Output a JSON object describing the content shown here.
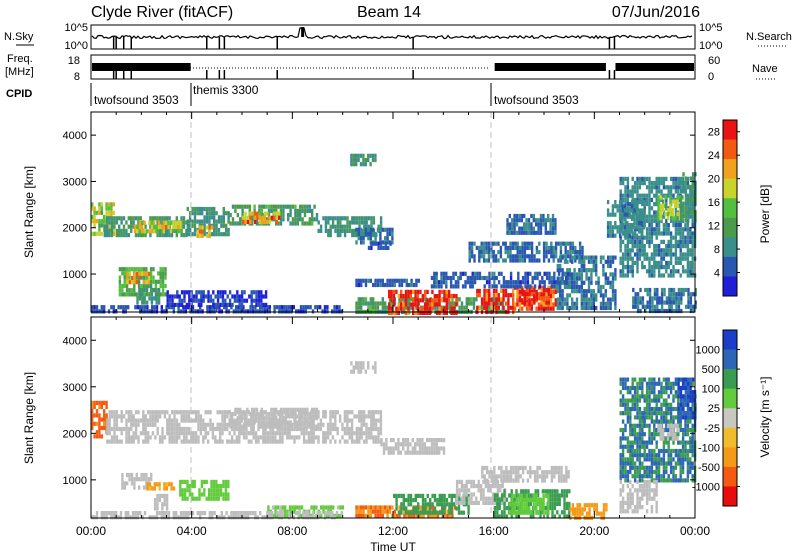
{
  "header": {
    "site_title": "Clyde River (fitACF)",
    "beam": "Beam 14",
    "date": "07/Jun/2016"
  },
  "status_panels": {
    "nsky": {
      "label": "N.Sky",
      "ticks": [
        "10^5",
        "10^0"
      ]
    },
    "nsearch": {
      "label": "N.Search",
      "ticks": [
        "10^5",
        "10^0"
      ]
    },
    "freq": {
      "label_line1": "Freq.",
      "label_line2": "[MHz]",
      "ticks": [
        "18",
        "8"
      ]
    },
    "nave": {
      "label": "Nave",
      "ticks": [
        "60",
        "0"
      ]
    },
    "cpid": {
      "label": "CPID",
      "segments": [
        {
          "name": "twofsound 3503",
          "start_hour": 0.0,
          "end_hour": 4.0
        },
        {
          "name": "themis 3300",
          "start_hour": 4.0,
          "end_hour": 16.0
        },
        {
          "name": "twofsound 3503",
          "start_hour": 16.0,
          "end_hour": 24.0
        }
      ]
    }
  },
  "colors": {
    "power_scale": [
      "#1f1fd8",
      "#2a57b0",
      "#3a8f8a",
      "#4c9a4c",
      "#52c03e",
      "#c8d42c",
      "#f0a21e",
      "#f25a14",
      "#e81414"
    ],
    "velocity_scale": [
      "#e80c0c",
      "#f45a12",
      "#f49a18",
      "#f2bd2c",
      "#c8c8c0",
      "#62cc3c",
      "#3a9c50",
      "#2c66b4",
      "#1a3ec8"
    ],
    "grey_marker": "#bdbdbd"
  },
  "chart_data": [
    {
      "type": "heatmap",
      "panel": "power",
      "ylabel": "Slant Range [km]",
      "xlabel": "Time UT",
      "x_ticks": [
        "00:00",
        "04:00",
        "08:00",
        "12:00",
        "16:00",
        "20:00",
        "00:00"
      ],
      "xlim_hours": [
        0,
        24
      ],
      "y_ticks": [
        1000,
        2000,
        3000,
        4000
      ],
      "ylim": [
        180,
        4500
      ],
      "colorbar": {
        "label": "Power [dB]",
        "ticks": [
          4,
          8,
          12,
          16,
          20,
          24,
          28
        ],
        "range": [
          0,
          30
        ]
      },
      "regions": [
        {
          "t": [
            0.0,
            0.9
          ],
          "r": [
            1900,
            2550
          ],
          "v": 17
        },
        {
          "t": [
            0.5,
            3.8
          ],
          "r": [
            1800,
            2250
          ],
          "v": 10
        },
        {
          "t": [
            1.7,
            3.6
          ],
          "r": [
            1950,
            2150
          ],
          "v": 19
        },
        {
          "t": [
            3.8,
            5.5
          ],
          "r": [
            1900,
            2450
          ],
          "v": 9
        },
        {
          "t": [
            4.0,
            4.8
          ],
          "r": [
            1800,
            2050
          ],
          "v": 22
        },
        {
          "t": [
            5.5,
            9.0
          ],
          "r": [
            2050,
            2500
          ],
          "v": 11
        },
        {
          "t": [
            6.0,
            7.5
          ],
          "r": [
            2150,
            2350
          ],
          "v": 22
        },
        {
          "t": [
            9.0,
            11.5
          ],
          "r": [
            1850,
            2250
          ],
          "v": 9
        },
        {
          "t": [
            10.5,
            12.0
          ],
          "r": [
            1650,
            2000
          ],
          "v": 6
        },
        {
          "t": [
            11.0,
            11.9
          ],
          "r": [
            1550,
            1700
          ],
          "v": 5
        },
        {
          "t": [
            1.1,
            3.0
          ],
          "r": [
            600,
            1150
          ],
          "v": 13
        },
        {
          "t": [
            1.4,
            2.3
          ],
          "r": [
            850,
            1050
          ],
          "v": 21
        },
        {
          "t": [
            1.8,
            2.7
          ],
          "r": [
            400,
            700
          ],
          "v": 9
        },
        {
          "t": [
            0.0,
            10.0
          ],
          "r": [
            180,
            330
          ],
          "v": 4
        },
        {
          "t": [
            3.0,
            7.0
          ],
          "r": [
            300,
            650
          ],
          "v": 3
        },
        {
          "t": [
            10.5,
            16.5
          ],
          "r": [
            180,
            500
          ],
          "v": 11
        },
        {
          "t": [
            11.8,
            14.5
          ],
          "r": [
            200,
            660
          ],
          "v": 29
        },
        {
          "t": [
            15.3,
            16.8
          ],
          "r": [
            210,
            680
          ],
          "v": 29
        },
        {
          "t": [
            16.8,
            18.5
          ],
          "r": [
            280,
            750
          ],
          "v": 27
        },
        {
          "t": [
            17.0,
            18.2
          ],
          "r": [
            400,
            700
          ],
          "v": 29
        },
        {
          "t": [
            13.5,
            19.0
          ],
          "r": [
            700,
            1050
          ],
          "v": 5
        },
        {
          "t": [
            10.5,
            13.0
          ],
          "r": [
            750,
            900
          ],
          "v": 5
        },
        {
          "t": [
            15.0,
            19.5
          ],
          "r": [
            1300,
            1700
          ],
          "v": 6
        },
        {
          "t": [
            16.5,
            18.5
          ],
          "r": [
            1900,
            2300
          ],
          "v": 6
        },
        {
          "t": [
            18.5,
            20.8
          ],
          "r": [
            300,
            1400
          ],
          "v": 7
        },
        {
          "t": [
            10.3,
            11.3
          ],
          "r": [
            3350,
            3600
          ],
          "v": 9
        },
        {
          "t": [
            21.0,
            24.0
          ],
          "r": [
            1000,
            3100
          ],
          "v": 8
        },
        {
          "t": [
            22.5,
            23.5
          ],
          "r": [
            2200,
            2700
          ],
          "v": 16
        },
        {
          "t": [
            23.4,
            24.0
          ],
          "r": [
            2200,
            3200
          ],
          "v": 10
        },
        {
          "t": [
            21.5,
            24.0
          ],
          "r": [
            200,
            700
          ],
          "v": 6
        },
        {
          "t": [
            20.5,
            22.0
          ],
          "r": [
            1800,
            2600
          ],
          "v": 8
        }
      ]
    },
    {
      "type": "heatmap",
      "panel": "velocity",
      "ylabel": "Slant Range [km]",
      "xlabel": "Time UT",
      "x_ticks": [
        "00:00",
        "04:00",
        "08:00",
        "12:00",
        "16:00",
        "20:00",
        "00:00"
      ],
      "xlim_hours": [
        0,
        24
      ],
      "y_ticks": [
        1000,
        2000,
        3000,
        4000
      ],
      "ylim": [
        180,
        4500
      ],
      "colorbar": {
        "label": "Velocity [m s⁻¹]",
        "ticks": [
          "1000",
          "500",
          "100",
          "25",
          "-25",
          "-100",
          "-500",
          "-1000"
        ],
        "range": [
          -1000,
          1000
        ]
      },
      "regions": [
        {
          "t": [
            0.0,
            0.6
          ],
          "r": [
            1950,
            2700
          ],
          "v": -350
        },
        {
          "t": [
            0.6,
            11.5
          ],
          "r": [
            1800,
            2500
          ],
          "v": 0
        },
        {
          "t": [
            5.5,
            9.0
          ],
          "r": [
            2100,
            2550
          ],
          "v": 0
        },
        {
          "t": [
            11.5,
            14.0
          ],
          "r": [
            1550,
            1900
          ],
          "v": 0
        },
        {
          "t": [
            1.2,
            2.4
          ],
          "r": [
            800,
            1150
          ],
          "v": 0
        },
        {
          "t": [
            2.2,
            3.3
          ],
          "r": [
            780,
            950
          ],
          "v": -120
        },
        {
          "t": [
            2.5,
            3.0
          ],
          "r": [
            400,
            700
          ],
          "v": 0
        },
        {
          "t": [
            3.5,
            5.5
          ],
          "r": [
            600,
            1000
          ],
          "v": 70
        },
        {
          "t": [
            7.0,
            10.0
          ],
          "r": [
            200,
            450
          ],
          "v": 30
        },
        {
          "t": [
            10.5,
            14.5
          ],
          "r": [
            200,
            450
          ],
          "v": -300
        },
        {
          "t": [
            12.0,
            15.0
          ],
          "r": [
            250,
            700
          ],
          "v": 140
        },
        {
          "t": [
            14.5,
            16.5
          ],
          "r": [
            500,
            1000
          ],
          "v": 0
        },
        {
          "t": [
            16.0,
            19.0
          ],
          "r": [
            250,
            800
          ],
          "v": 180
        },
        {
          "t": [
            16.6,
            18.2
          ],
          "r": [
            300,
            700
          ],
          "v": 80
        },
        {
          "t": [
            19.0,
            20.5
          ],
          "r": [
            220,
            500
          ],
          "v": -200
        },
        {
          "t": [
            15.5,
            19.0
          ],
          "r": [
            1000,
            1300
          ],
          "v": 0
        },
        {
          "t": [
            10.3,
            11.3
          ],
          "r": [
            3350,
            3550
          ],
          "v": 0
        },
        {
          "t": [
            21.0,
            24.0
          ],
          "r": [
            1000,
            3200
          ],
          "v": 300
        },
        {
          "t": [
            22.5,
            23.3
          ],
          "r": [
            1900,
            2200
          ],
          "v": 0
        },
        {
          "t": [
            23.3,
            24.0
          ],
          "r": [
            2300,
            3200
          ],
          "v": 700
        },
        {
          "t": [
            21.0,
            22.5
          ],
          "r": [
            300,
            1000
          ],
          "v": 0
        },
        {
          "t": [
            0.0,
            10.0
          ],
          "r": [
            180,
            330
          ],
          "v": 0
        }
      ]
    }
  ]
}
